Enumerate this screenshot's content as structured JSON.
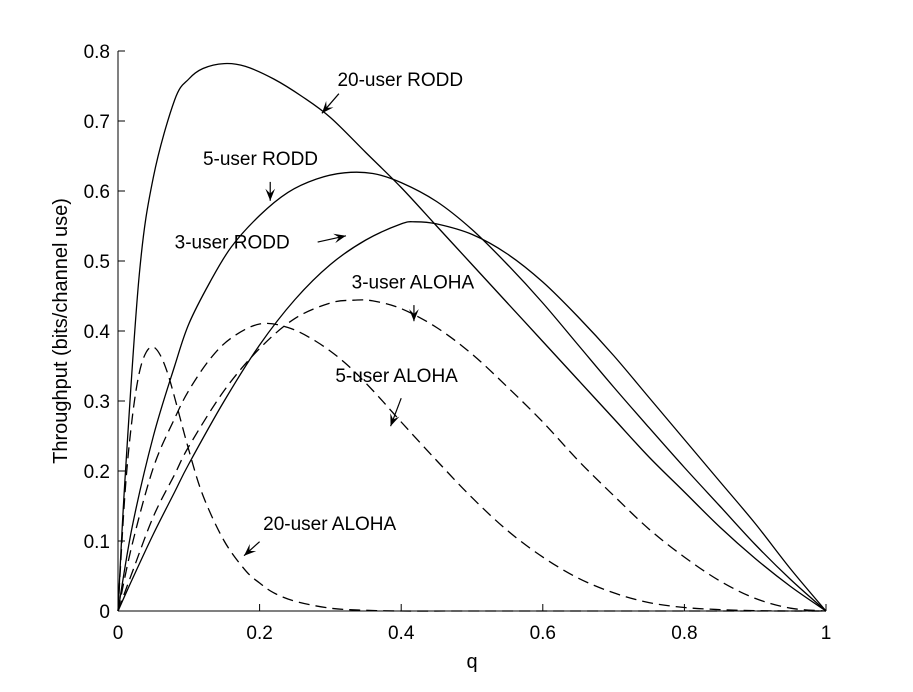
{
  "chart_data": {
    "type": "line",
    "title": "",
    "xlabel": "q",
    "ylabel": "Throughput (bits/channel use)",
    "xlim": [
      0,
      1
    ],
    "ylim": [
      0,
      0.8
    ],
    "grid": false,
    "x_ticks": [
      {
        "value": 0,
        "label": "0"
      },
      {
        "value": 0.2,
        "label": "0.2"
      },
      {
        "value": 0.4,
        "label": "0.4"
      },
      {
        "value": 0.6,
        "label": "0.6"
      },
      {
        "value": 0.8,
        "label": "0.8"
      },
      {
        "value": 1,
        "label": "1"
      }
    ],
    "y_ticks": [
      {
        "value": 0,
        "label": "0"
      },
      {
        "value": 0.1,
        "label": "0.1"
      },
      {
        "value": 0.2,
        "label": "0.2"
      },
      {
        "value": 0.3,
        "label": "0.3"
      },
      {
        "value": 0.4,
        "label": "0.4"
      },
      {
        "value": 0.5,
        "label": "0.5"
      },
      {
        "value": 0.6,
        "label": "0.6"
      },
      {
        "value": 0.7,
        "label": "0.7"
      },
      {
        "value": 0.8,
        "label": "0.8"
      }
    ],
    "series": [
      {
        "name": "20-user RODD",
        "style": "solid",
        "x": [
          0,
          0.01,
          0.03,
          0.05,
          0.08,
          0.1,
          0.12,
          0.15,
          0.18,
          0.22,
          0.26,
          0.3,
          0.35,
          0.4,
          0.45,
          0.5,
          0.55,
          0.6,
          0.65,
          0.7,
          0.75,
          0.8,
          0.85,
          0.9,
          0.95,
          1.0
        ],
        "y": [
          0,
          0.19,
          0.48,
          0.62,
          0.73,
          0.76,
          0.775,
          0.782,
          0.778,
          0.76,
          0.735,
          0.705,
          0.655,
          0.605,
          0.55,
          0.495,
          0.44,
          0.385,
          0.33,
          0.275,
          0.22,
          0.17,
          0.12,
          0.075,
          0.035,
          0
        ]
      },
      {
        "name": "5-user RODD",
        "style": "solid",
        "x": [
          0,
          0.02,
          0.05,
          0.08,
          0.1,
          0.13,
          0.16,
          0.2,
          0.24,
          0.28,
          0.32,
          0.36,
          0.4,
          0.45,
          0.5,
          0.55,
          0.6,
          0.65,
          0.7,
          0.75,
          0.8,
          0.85,
          0.9,
          0.95,
          1.0
        ],
        "y": [
          0,
          0.12,
          0.25,
          0.35,
          0.41,
          0.47,
          0.52,
          0.565,
          0.598,
          0.617,
          0.626,
          0.625,
          0.612,
          0.585,
          0.545,
          0.495,
          0.44,
          0.38,
          0.32,
          0.262,
          0.205,
          0.15,
          0.095,
          0.045,
          0
        ]
      },
      {
        "name": "3-user RODD",
        "style": "solid",
        "x": [
          0,
          0.02,
          0.05,
          0.08,
          0.1,
          0.15,
          0.2,
          0.25,
          0.3,
          0.35,
          0.4,
          0.42,
          0.45,
          0.5,
          0.55,
          0.6,
          0.65,
          0.7,
          0.75,
          0.8,
          0.85,
          0.9,
          0.95,
          1.0
        ],
        "y": [
          0,
          0.045,
          0.11,
          0.17,
          0.21,
          0.3,
          0.38,
          0.445,
          0.495,
          0.53,
          0.553,
          0.556,
          0.553,
          0.538,
          0.51,
          0.47,
          0.42,
          0.365,
          0.305,
          0.245,
          0.185,
          0.125,
          0.06,
          0
        ]
      },
      {
        "name": "3-user ALOHA",
        "style": "dashed",
        "x": [
          0,
          0.02,
          0.05,
          0.08,
          0.1,
          0.15,
          0.2,
          0.25,
          0.3,
          0.333,
          0.36,
          0.4,
          0.45,
          0.5,
          0.55,
          0.6,
          0.65,
          0.7,
          0.75,
          0.8,
          0.85,
          0.9,
          0.95,
          1.0
        ],
        "y": [
          0,
          0.055,
          0.135,
          0.195,
          0.235,
          0.315,
          0.375,
          0.418,
          0.44,
          0.444,
          0.443,
          0.432,
          0.405,
          0.367,
          0.32,
          0.27,
          0.215,
          0.165,
          0.117,
          0.077,
          0.043,
          0.018,
          0.004,
          0
        ]
      },
      {
        "name": "5-user ALOHA",
        "style": "dashed",
        "x": [
          0,
          0.02,
          0.05,
          0.08,
          0.1,
          0.13,
          0.16,
          0.2,
          0.24,
          0.28,
          0.32,
          0.36,
          0.4,
          0.45,
          0.5,
          0.55,
          0.6,
          0.65,
          0.7,
          0.75,
          0.8,
          0.85,
          0.9,
          0.95,
          1.0
        ],
        "y": [
          0,
          0.095,
          0.205,
          0.275,
          0.315,
          0.36,
          0.39,
          0.41,
          0.405,
          0.385,
          0.355,
          0.315,
          0.27,
          0.215,
          0.162,
          0.115,
          0.077,
          0.047,
          0.026,
          0.012,
          0.005,
          0.002,
          0.0005,
          0,
          0
        ]
      },
      {
        "name": "20-user ALOHA",
        "style": "dashed",
        "x": [
          0,
          0.01,
          0.02,
          0.03,
          0.04,
          0.05,
          0.06,
          0.07,
          0.08,
          0.1,
          0.12,
          0.15,
          0.18,
          0.2,
          0.22,
          0.25,
          0.3,
          0.35,
          0.4,
          0.5,
          0.6,
          0.8,
          1.0
        ],
        "y": [
          0,
          0.17,
          0.275,
          0.34,
          0.37,
          0.377,
          0.365,
          0.34,
          0.305,
          0.23,
          0.165,
          0.1,
          0.058,
          0.04,
          0.026,
          0.014,
          0.004,
          0.001,
          0,
          0,
          0,
          0,
          0
        ]
      }
    ],
    "annotations": [
      {
        "label": "20-user RODD",
        "text_pos": [
          0.31,
          0.75
        ],
        "arrow_from": [
          0.312,
          0.739
        ],
        "arrow_to": [
          0.288,
          0.711
        ]
      },
      {
        "label": "5-user RODD",
        "text_pos": [
          0.12,
          0.637
        ],
        "arrow_from": [
          0.215,
          0.613
        ],
        "arrow_to": [
          0.215,
          0.586
        ]
      },
      {
        "label": "3-user RODD",
        "text_pos": [
          0.08,
          0.518
        ],
        "arrow_from": [
          0.282,
          0.527
        ],
        "arrow_to": [
          0.322,
          0.536
        ]
      },
      {
        "label": "3-user ALOHA",
        "text_pos": [
          0.33,
          0.461
        ],
        "arrow_from": [
          0.418,
          0.437
        ],
        "arrow_to": [
          0.418,
          0.414
        ]
      },
      {
        "label": "5-user ALOHA",
        "text_pos": [
          0.307,
          0.327
        ],
        "arrow_from": [
          0.4,
          0.304
        ],
        "arrow_to": [
          0.385,
          0.264
        ]
      },
      {
        "label": "20-user ALOHA",
        "text_pos": [
          0.205,
          0.116
        ],
        "arrow_from": [
          0.2,
          0.099
        ],
        "arrow_to": [
          0.178,
          0.079
        ]
      }
    ]
  }
}
